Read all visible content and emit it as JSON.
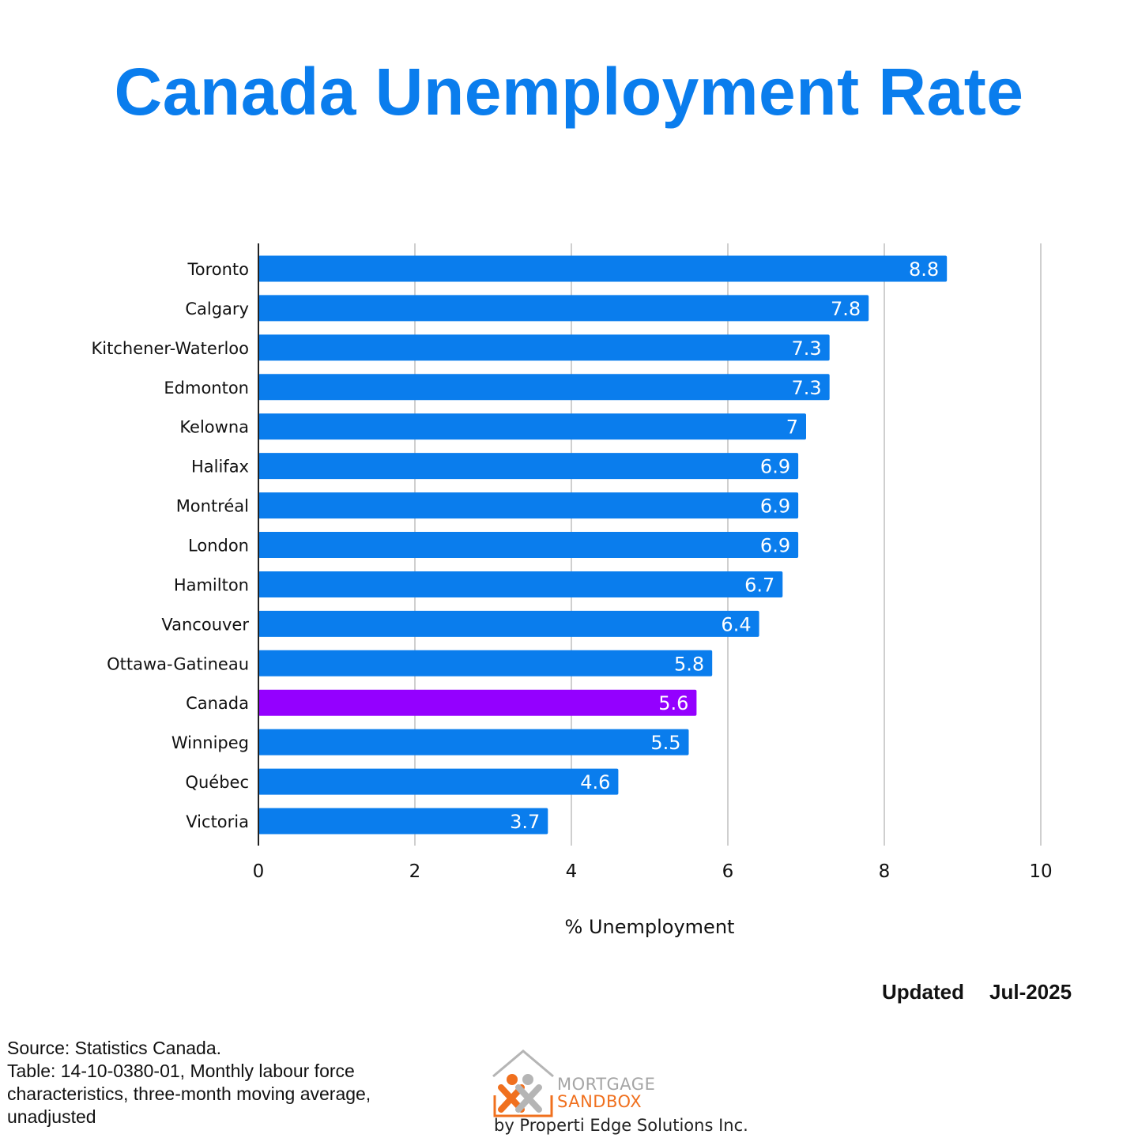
{
  "title": "Canada Unemployment Rate",
  "colors": {
    "bar": "#0a7ded",
    "highlight": "#9400ff",
    "grid": "#cfcfcf",
    "axis": "#222222"
  },
  "chart_data": {
    "type": "bar",
    "orientation": "horizontal",
    "categories": [
      "Toronto",
      "Calgary",
      "Kitchener-Waterloo",
      "Edmonton",
      "Kelowna",
      "Halifax",
      "Montréal",
      "London",
      "Hamilton",
      "Vancouver",
      "Ottawa-Gatineau",
      "Canada",
      "Winnipeg",
      "Québec",
      "Victoria"
    ],
    "values": [
      8.8,
      7.8,
      7.3,
      7.3,
      7.0,
      6.9,
      6.9,
      6.9,
      6.7,
      6.4,
      5.8,
      5.6,
      5.5,
      4.6,
      3.7
    ],
    "value_labels": [
      "8.8",
      "7.8",
      "7.3",
      "7.3",
      "7",
      "6.9",
      "6.9",
      "6.9",
      "6.7",
      "6.4",
      "5.8",
      "5.6",
      "5.5",
      "4.6",
      "3.7"
    ],
    "highlight_category": "Canada",
    "xlabel": "% Unemployment",
    "ylabel": "",
    "xlim": [
      0,
      10
    ],
    "xticks": [
      0,
      2,
      4,
      6,
      8,
      10
    ],
    "xtick_labels": [
      "0",
      "2",
      "4",
      "6",
      "8",
      "10"
    ],
    "grid": "vertical",
    "legend": "none"
  },
  "updated": {
    "label": "Updated",
    "date": "Jul-2025"
  },
  "source": {
    "line1": "Source: Statistics Canada.",
    "line2": "Table: 14-10-0380-01, Monthly labour force characteristics, three-month moving average, unadjusted"
  },
  "logo": {
    "word1": "MORTGAGE",
    "word2": "SANDBOX",
    "tagline": "by Properti Edge Solutions Inc.",
    "icon": "house-people-logo-icon"
  }
}
